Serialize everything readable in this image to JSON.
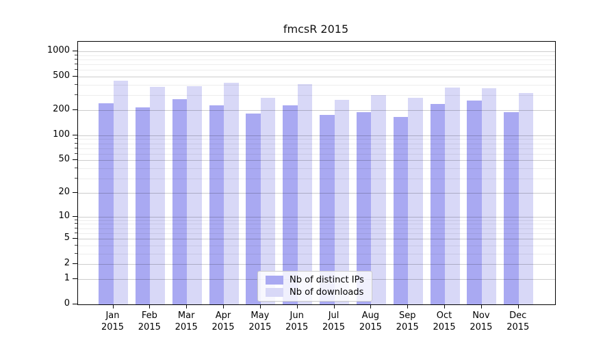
{
  "chart_data": {
    "type": "bar",
    "title": "fmcsR 2015",
    "scale": "log1p",
    "ylim": [
      0,
      1300
    ],
    "grid": true,
    "legend_position": "inside-bottom-center",
    "y_major_ticks": [
      0,
      1,
      2,
      5,
      10,
      20,
      50,
      100,
      200,
      500,
      1000
    ],
    "y_minor_ticks": [
      3,
      4,
      6,
      7,
      8,
      9,
      30,
      40,
      60,
      70,
      80,
      90,
      300,
      400,
      600,
      700,
      800,
      900
    ],
    "categories": [
      "Jan",
      "Feb",
      "Mar",
      "Apr",
      "May",
      "Jun",
      "Jul",
      "Aug",
      "Sep",
      "Oct",
      "Nov",
      "Dec"
    ],
    "x_year": "2015",
    "series": [
      {
        "name": "Nb of distinct IPs",
        "color": "#a9a9f2",
        "values": [
          240,
          215,
          270,
          230,
          183,
          230,
          177,
          189,
          167,
          235,
          258,
          189
        ]
      },
      {
        "name": "Nb of downloads",
        "color": "#d8d8f7",
        "values": [
          445,
          375,
          385,
          420,
          278,
          410,
          266,
          300,
          280,
          370,
          367,
          320
        ]
      }
    ],
    "colors": {
      "axis": "#000000",
      "background": "#ffffff"
    }
  }
}
